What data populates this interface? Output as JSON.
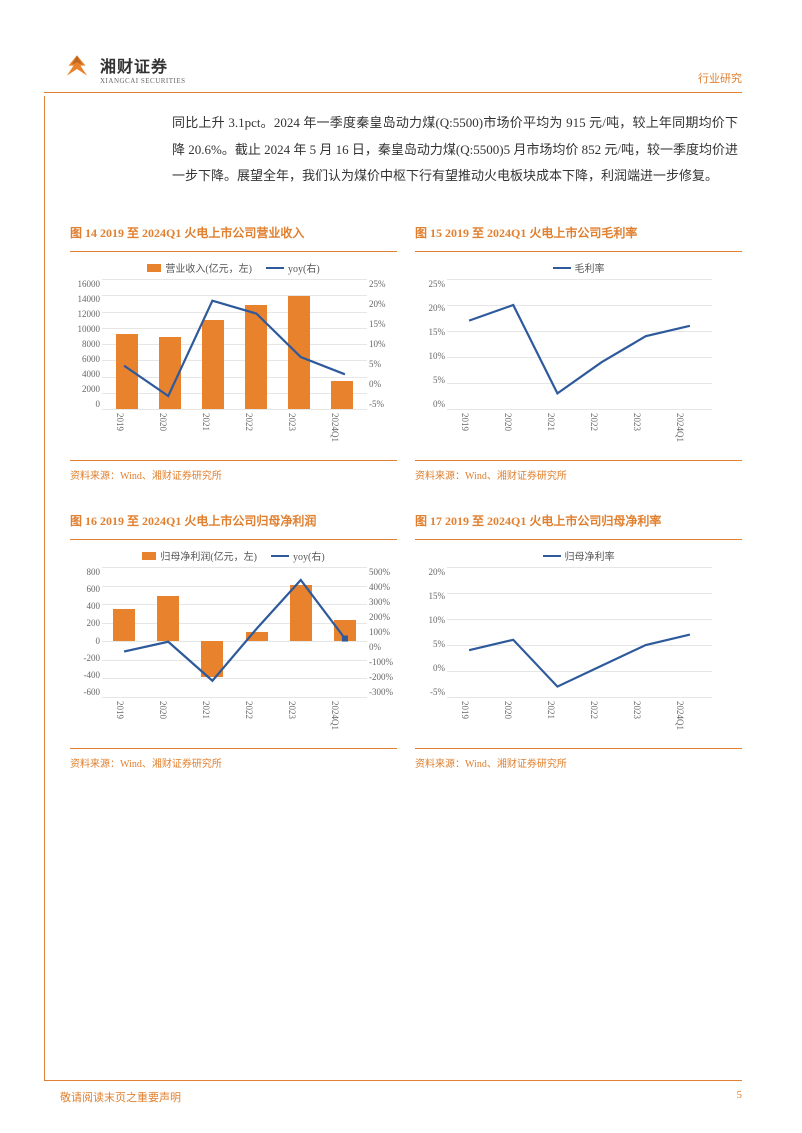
{
  "header": {
    "logo_cn": "湘财证券",
    "logo_en": "XIANGCAI SECURITIES",
    "page_tag": "行业研究"
  },
  "body_text": "同比上升 3.1pct。2024 年一季度秦皇岛动力煤(Q:5500)市场价平均为 915 元/吨，较上年同期均价下降 20.6%。截止 2024 年 5 月 16 日，秦皇岛动力煤(Q:5500)5 月市场均价 852 元/吨，较一季度均价进一步下降。展望全年，我们认为煤价中枢下行有望推动火电板块成本下降，利润端进一步修复。",
  "common": {
    "source": "资料来源：Wind、湘财证券研究所",
    "x_categories": [
      "2019",
      "2020",
      "2021",
      "2022",
      "2023",
      "2024Q1"
    ],
    "bar_color": "#e8822d",
    "line_color": "#2e5a9c",
    "grid_color": "#e6e6e6",
    "bg": "#ffffff",
    "label_fontsize": 9
  },
  "chart14": {
    "title": "图 14 2019 至 2024Q1 火电上市公司营业收入",
    "legend_bar": "营业收入(亿元，左)",
    "legend_line": "yoy(右)",
    "y_left_ticks": [
      "16000",
      "14000",
      "12000",
      "10000",
      "8000",
      "6000",
      "4000",
      "2000",
      "0"
    ],
    "y_left_min": 0,
    "y_left_max": 16000,
    "y_right_ticks": [
      "25%",
      "20%",
      "15%",
      "10%",
      "5%",
      "0%",
      "-5%"
    ],
    "y_right_min": -5,
    "y_right_max": 25,
    "bars": [
      9200,
      8900,
      11000,
      12800,
      13900,
      3500
    ],
    "line": [
      5,
      -2,
      20,
      17,
      7,
      3
    ]
  },
  "chart15": {
    "title": "图 15 2019 至 2024Q1 火电上市公司毛利率",
    "legend_line": "毛利率",
    "y_left_ticks": [
      "25%",
      "20%",
      "15%",
      "10%",
      "5%",
      "0%"
    ],
    "y_left_min": 0,
    "y_left_max": 25,
    "line": [
      17,
      20,
      3,
      9,
      14,
      16
    ]
  },
  "chart16": {
    "title": "图 16 2019 至 2024Q1 火电上市公司归母净利润",
    "legend_bar": "归母净利润(亿元，左)",
    "legend_line": "yoy(右)",
    "y_left_ticks": [
      "800",
      "600",
      "400",
      "200",
      "0",
      "-200",
      "-400",
      "-600"
    ],
    "y_left_min": -600,
    "y_left_max": 800,
    "y_right_ticks": [
      "500%",
      "400%",
      "300%",
      "200%",
      "100%",
      "0%",
      "-100%",
      "-200%",
      "-300%"
    ],
    "y_right_min": -300,
    "y_right_max": 500,
    "bars": [
      350,
      490,
      -380,
      100,
      610,
      230
    ],
    "line": [
      -20,
      40,
      -200,
      120,
      420,
      60
    ],
    "dot_last": true
  },
  "chart17": {
    "title": "图 17 2019 至 2024Q1 火电上市公司归母净利率",
    "legend_line": "归母净利率",
    "y_left_ticks": [
      "20%",
      "15%",
      "10%",
      "5%",
      "0%",
      "-5%"
    ],
    "y_left_min": -5,
    "y_left_max": 20,
    "line": [
      4,
      6,
      -3,
      1,
      5,
      7
    ]
  },
  "footer": {
    "left": "敬请阅读末页之重要声明",
    "page_no": "5"
  }
}
